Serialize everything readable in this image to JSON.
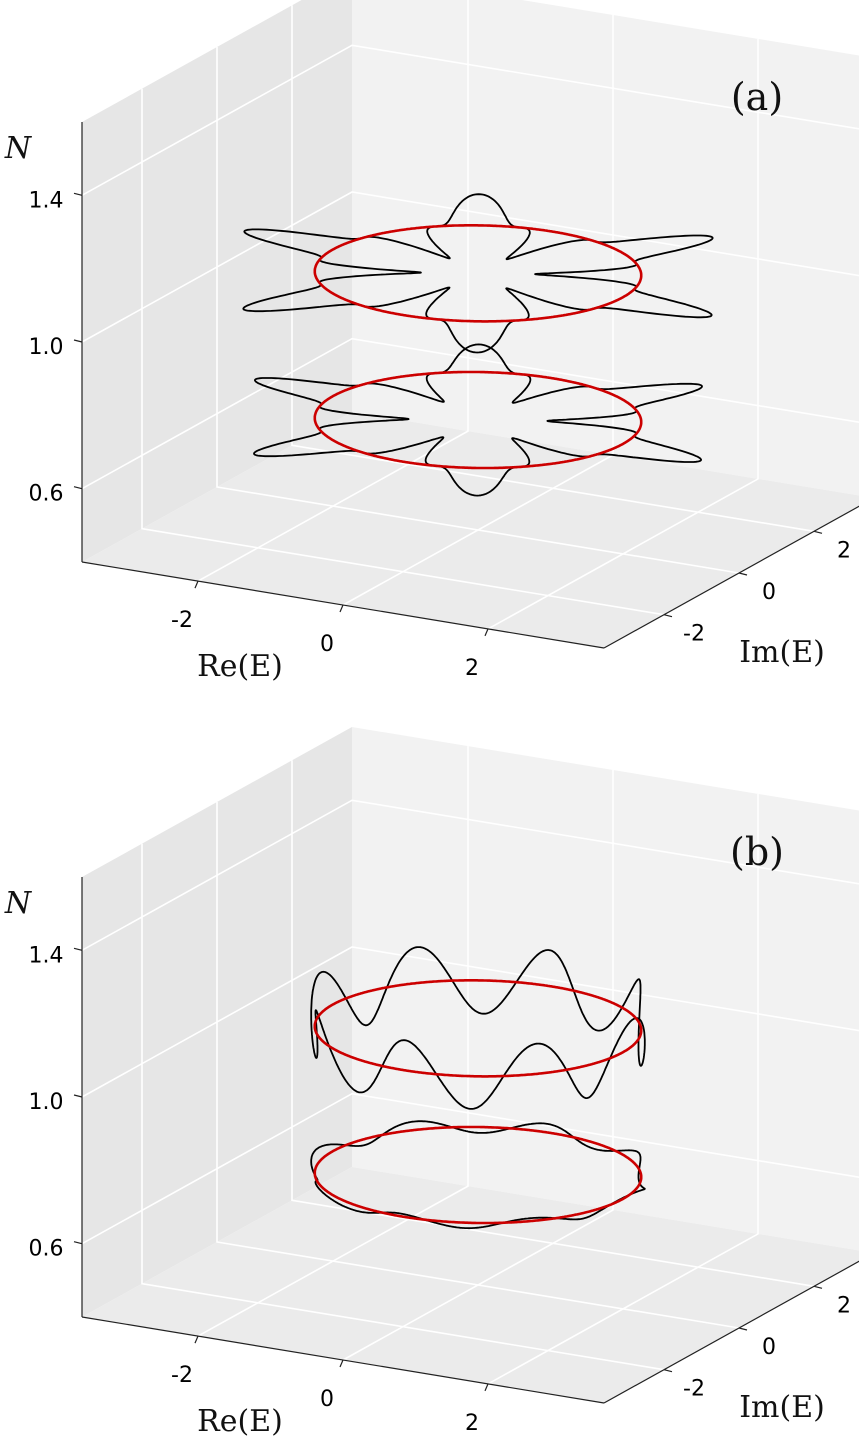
{
  "chart_data": [
    {
      "type": "line3d",
      "panel_label": "(a)",
      "xlabel": "Re(E)",
      "ylabel": "Im(E)",
      "zlabel": "N",
      "x_ticks": [
        "-2",
        "0",
        "2"
      ],
      "y_ticks": [
        "-2",
        "0",
        "2"
      ],
      "z_ticks": [
        "0.6",
        "1.0",
        "1.4"
      ],
      "xlim": [
        -3.6,
        3.6
      ],
      "ylim": [
        -3.6,
        3.6
      ],
      "zlim": [
        0.4,
        1.6
      ],
      "grid": true,
      "colors": {
        "spectrum": "#000000",
        "circle": "#cc0000"
      },
      "series": [
        {
          "kind": "spectrum",
          "z": 1.1,
          "radius": 2.0,
          "lobes": 6,
          "lobe_amplitude": 1.3,
          "lobe_sharpness": 3.0
        },
        {
          "kind": "circle",
          "z": 1.1,
          "radius": 2.0
        },
        {
          "kind": "spectrum",
          "z": 0.7,
          "radius": 2.0,
          "lobes": 6,
          "lobe_amplitude": 1.15,
          "lobe_sharpness": 3.0
        },
        {
          "kind": "circle",
          "z": 0.7,
          "radius": 2.0
        }
      ]
    },
    {
      "type": "line3d",
      "panel_label": "(b)",
      "xlabel": "Re(E)",
      "ylabel": "Im(E)",
      "zlabel": "N",
      "x_ticks": [
        "-2",
        "0",
        "2"
      ],
      "y_ticks": [
        "-2",
        "0",
        "2"
      ],
      "z_ticks": [
        "0.6",
        "1.0",
        "1.4"
      ],
      "xlim": [
        -3.6,
        3.6
      ],
      "ylim": [
        -3.6,
        3.6
      ],
      "zlim": [
        0.4,
        1.6
      ],
      "grid": true,
      "colors": {
        "spectrum": "#000000",
        "circle": "#cc0000"
      },
      "series": [
        {
          "kind": "spectrum-wavy",
          "z": 1.1,
          "radius": 2.05,
          "waves": 8,
          "z_amplitude": 0.09
        },
        {
          "kind": "circle",
          "z": 1.1,
          "radius": 2.0
        },
        {
          "kind": "spectrum-wavy",
          "z": 0.7,
          "radius": 2.05,
          "waves": 8,
          "z_amplitude": 0.015
        },
        {
          "kind": "circle",
          "z": 0.7,
          "radius": 2.0
        }
      ]
    }
  ]
}
